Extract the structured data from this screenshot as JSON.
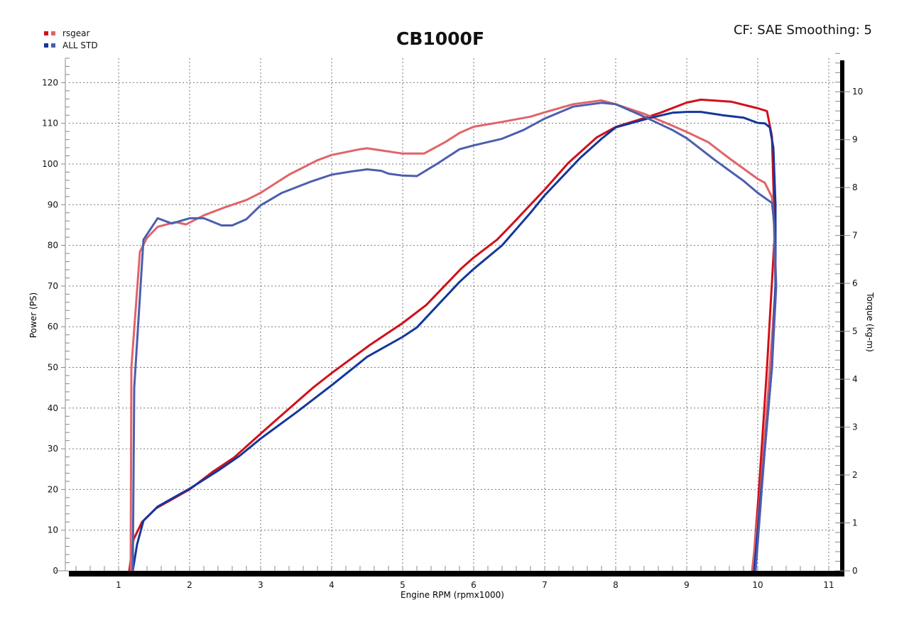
{
  "chart_data": {
    "type": "line",
    "title": "CB1000F",
    "annotation": "CF: SAE Smoothing: 5",
    "xlabel": "Engine RPM (rpmx1000)",
    "ylabel": "Power (PS)",
    "y2label": "Torque (kg-m)",
    "xlim": [
      0.3,
      11.08
    ],
    "ylim": [
      0,
      126
    ],
    "y2lim": [
      0,
      10.7
    ],
    "x_ticks": [
      "1",
      "2",
      "3",
      "4",
      "5",
      "6",
      "7",
      "8",
      "9",
      "10",
      "11"
    ],
    "y_ticks": [
      "0",
      "10",
      "20",
      "30",
      "40",
      "50",
      "60",
      "70",
      "80",
      "90",
      "100",
      "110",
      "120"
    ],
    "y2_ticks": [
      "0",
      "1",
      "2",
      "3",
      "4",
      "5",
      "6",
      "7",
      "8",
      "9",
      "10"
    ],
    "grid": true,
    "legend_position": "top-left",
    "legend": [
      {
        "name": "rsgear",
        "colors": [
          "#d0101a",
          "#e06468"
        ]
      },
      {
        "name": "ALL STD",
        "colors": [
          "#13379a",
          "#4c5eae"
        ]
      }
    ],
    "series": [
      {
        "legend": "rsgear",
        "quantity": "power",
        "axis": "left",
        "color": "#d0101a",
        "points": [
          [
            1.15,
            0
          ],
          [
            1.21,
            7.7
          ],
          [
            1.33,
            12
          ],
          [
            1.53,
            15.4
          ],
          [
            2.0,
            20
          ],
          [
            2.33,
            24.4
          ],
          [
            2.63,
            27.9
          ],
          [
            3.0,
            33.7
          ],
          [
            3.33,
            38.8
          ],
          [
            3.73,
            44.9
          ],
          [
            4.0,
            48.6
          ],
          [
            4.53,
            55.4
          ],
          [
            5.0,
            60.9
          ],
          [
            5.33,
            65.3
          ],
          [
            5.83,
            74.4
          ],
          [
            6.0,
            77
          ],
          [
            6.33,
            81.4
          ],
          [
            6.53,
            85
          ],
          [
            7.0,
            93.7
          ],
          [
            7.33,
            100.2
          ],
          [
            7.73,
            106.5
          ],
          [
            8.0,
            109.1
          ],
          [
            8.33,
            110.9
          ],
          [
            8.63,
            112.6
          ],
          [
            9.0,
            115.1
          ],
          [
            9.2,
            115.8
          ],
          [
            9.63,
            115.3
          ],
          [
            10.0,
            113.7
          ],
          [
            10.13,
            113
          ],
          [
            10.2,
            106.8
          ],
          [
            10.24,
            83
          ],
          [
            10.13,
            49.8
          ],
          [
            10.01,
            18.2
          ],
          [
            9.93,
            0
          ]
        ]
      },
      {
        "legend": "rsgear",
        "quantity": "torque",
        "axis": "right",
        "color": "#e06468",
        "points": [
          [
            1.17,
            0
          ],
          [
            1.18,
            4.24
          ],
          [
            1.3,
            6.66
          ],
          [
            1.4,
            6.95
          ],
          [
            1.55,
            7.18
          ],
          [
            1.8,
            7.28
          ],
          [
            1.95,
            7.23
          ],
          [
            2.2,
            7.42
          ],
          [
            2.5,
            7.59
          ],
          [
            2.8,
            7.74
          ],
          [
            3.0,
            7.89
          ],
          [
            3.4,
            8.27
          ],
          [
            3.8,
            8.57
          ],
          [
            4.0,
            8.68
          ],
          [
            4.4,
            8.8
          ],
          [
            4.5,
            8.82
          ],
          [
            5.0,
            8.71
          ],
          [
            5.3,
            8.71
          ],
          [
            5.6,
            8.95
          ],
          [
            5.8,
            9.14
          ],
          [
            6.0,
            9.27
          ],
          [
            6.4,
            9.37
          ],
          [
            6.8,
            9.48
          ],
          [
            7.0,
            9.57
          ],
          [
            7.4,
            9.74
          ],
          [
            7.8,
            9.82
          ],
          [
            8.0,
            9.74
          ],
          [
            8.4,
            9.54
          ],
          [
            8.8,
            9.29
          ],
          [
            9.0,
            9.16
          ],
          [
            9.3,
            8.95
          ],
          [
            9.6,
            8.61
          ],
          [
            10.0,
            8.18
          ],
          [
            10.1,
            8.1
          ],
          [
            10.2,
            7.8
          ],
          [
            10.23,
            7.2
          ],
          [
            10.25,
            5.94
          ],
          [
            10.15,
            3.8
          ],
          [
            10.03,
            1.5
          ],
          [
            9.92,
            0
          ]
        ]
      },
      {
        "legend": "ALL STD",
        "quantity": "power",
        "axis": "left",
        "color": "#13379a",
        "points": [
          [
            1.2,
            0
          ],
          [
            1.26,
            6.5
          ],
          [
            1.35,
            12.3
          ],
          [
            1.55,
            15.8
          ],
          [
            2.0,
            20.2
          ],
          [
            2.4,
            24.6
          ],
          [
            2.7,
            28.2
          ],
          [
            3.0,
            32.5
          ],
          [
            3.5,
            38.9
          ],
          [
            4.0,
            45.6
          ],
          [
            4.5,
            52.6
          ],
          [
            5.0,
            57.5
          ],
          [
            5.2,
            59.8
          ],
          [
            5.5,
            65.4
          ],
          [
            5.8,
            71
          ],
          [
            6.0,
            74.2
          ],
          [
            6.4,
            80
          ],
          [
            6.8,
            88
          ],
          [
            7.0,
            92.3
          ],
          [
            7.5,
            101.5
          ],
          [
            7.8,
            106.2
          ],
          [
            8.0,
            109
          ],
          [
            8.5,
            111.4
          ],
          [
            8.8,
            112.6
          ],
          [
            9.0,
            112.8
          ],
          [
            9.2,
            112.8
          ],
          [
            9.5,
            112
          ],
          [
            9.8,
            111.4
          ],
          [
            10.0,
            110.1
          ],
          [
            10.1,
            110
          ],
          [
            10.17,
            109
          ],
          [
            10.22,
            104
          ],
          [
            10.25,
            90
          ],
          [
            10.25,
            70
          ],
          [
            10.2,
            50
          ],
          [
            10.1,
            30
          ],
          [
            10.0,
            10
          ],
          [
            9.95,
            0
          ]
        ]
      },
      {
        "legend": "ALL STD",
        "quantity": "torque",
        "axis": "right",
        "color": "#4c5eae",
        "points": [
          [
            1.2,
            0
          ],
          [
            1.22,
            3.82
          ],
          [
            1.35,
            6.91
          ],
          [
            1.55,
            7.36
          ],
          [
            1.75,
            7.25
          ],
          [
            2.0,
            7.36
          ],
          [
            2.2,
            7.36
          ],
          [
            2.45,
            7.21
          ],
          [
            2.6,
            7.21
          ],
          [
            2.8,
            7.34
          ],
          [
            3.0,
            7.63
          ],
          [
            3.3,
            7.89
          ],
          [
            3.7,
            8.12
          ],
          [
            4.0,
            8.27
          ],
          [
            4.3,
            8.34
          ],
          [
            4.5,
            8.38
          ],
          [
            4.7,
            8.35
          ],
          [
            4.8,
            8.29
          ],
          [
            5.0,
            8.25
          ],
          [
            5.2,
            8.24
          ],
          [
            5.5,
            8.51
          ],
          [
            5.8,
            8.8
          ],
          [
            6.0,
            8.88
          ],
          [
            6.4,
            9.02
          ],
          [
            6.7,
            9.2
          ],
          [
            7.0,
            9.44
          ],
          [
            7.4,
            9.69
          ],
          [
            7.8,
            9.77
          ],
          [
            8.0,
            9.74
          ],
          [
            8.4,
            9.48
          ],
          [
            8.8,
            9.2
          ],
          [
            9.0,
            9.03
          ],
          [
            9.4,
            8.57
          ],
          [
            9.8,
            8.14
          ],
          [
            10.0,
            7.89
          ],
          [
            10.2,
            7.68
          ],
          [
            10.23,
            7.29
          ],
          [
            10.26,
            5.94
          ],
          [
            10.2,
            4.24
          ],
          [
            10.1,
            2.54
          ],
          [
            9.97,
            0
          ]
        ]
      }
    ]
  }
}
